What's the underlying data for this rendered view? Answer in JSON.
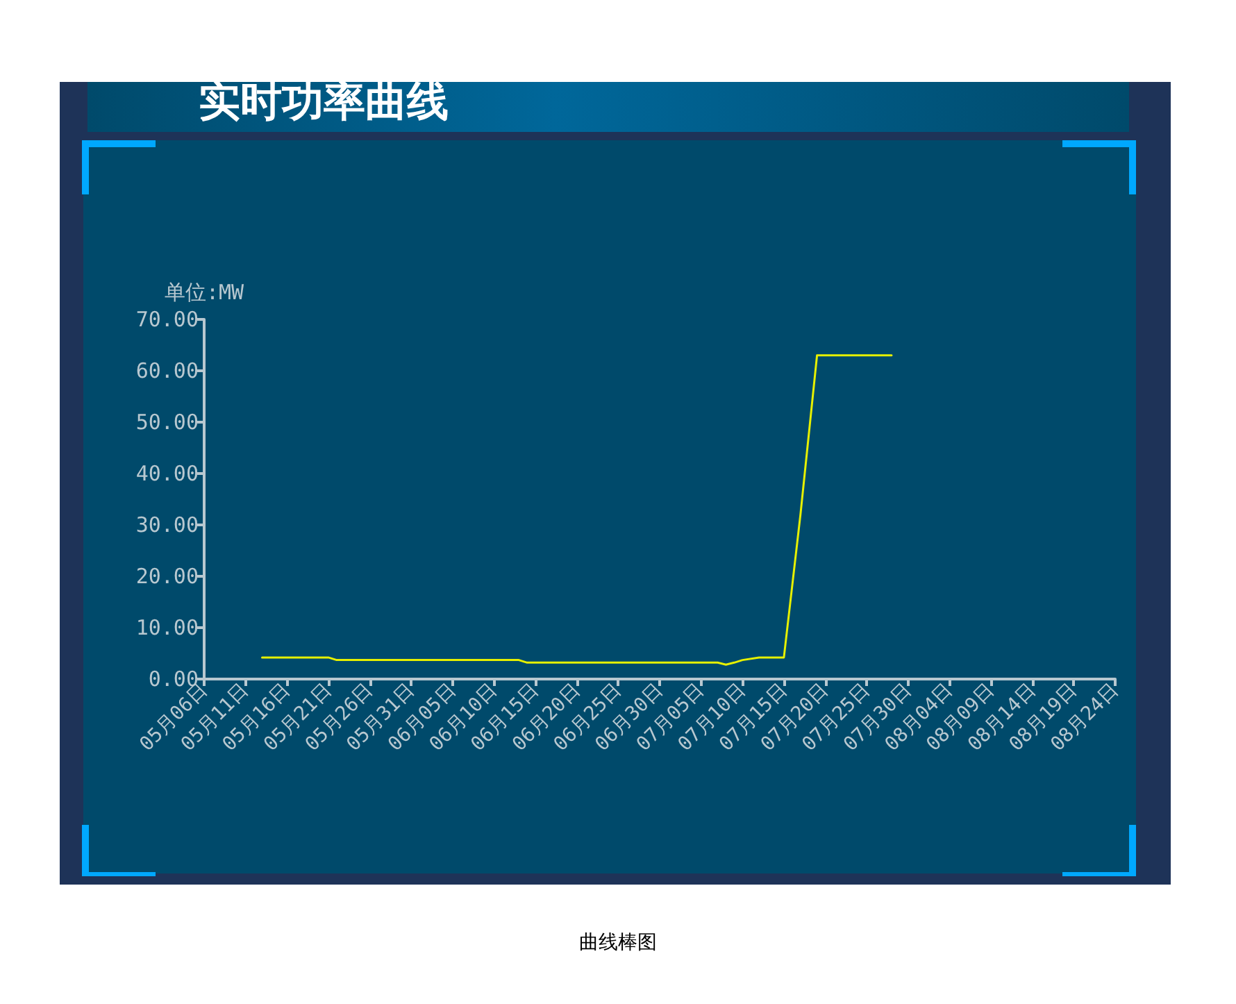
{
  "chart_data": {
    "type": "line",
    "title": "实时功率曲线",
    "ylabel": "单位:MW",
    "annotations": [
      "曲线棒图"
    ],
    "x": [
      "--05-13",
      "--05-21",
      "--05-22",
      "--06-13",
      "--06-14",
      "--07-07",
      "--07-08",
      "--07-09",
      "--07-10",
      "--07-12",
      "--07-15",
      "--07-17",
      "--07-19",
      "--07-28"
    ],
    "series": [
      {
        "color": "#e6f000",
        "values": [
          4.2,
          4.2,
          3.7,
          3.7,
          3.2,
          3.2,
          2.8,
          3.2,
          3.7,
          4.2,
          4.2,
          32,
          63,
          63
        ]
      }
    ],
    "xlim": [
      "--05-06",
      "--08-24"
    ],
    "xticks": [
      {
        "value": "--05-06",
        "label": "05月06日"
      },
      {
        "value": "--05-11",
        "label": "05月11日"
      },
      {
        "value": "--05-16",
        "label": "05月16日"
      },
      {
        "value": "--05-21",
        "label": "05月21日"
      },
      {
        "value": "--05-26",
        "label": "05月26日"
      },
      {
        "value": "--05-31",
        "label": "05月31日"
      },
      {
        "value": "--06-05",
        "label": "06月05日"
      },
      {
        "value": "--06-10",
        "label": "06月10日"
      },
      {
        "value": "--06-15",
        "label": "06月15日"
      },
      {
        "value": "--06-20",
        "label": "06月20日"
      },
      {
        "value": "--06-25",
        "label": "06月25日"
      },
      {
        "value": "--06-30",
        "label": "06月30日"
      },
      {
        "value": "--07-05",
        "label": "07月05日"
      },
      {
        "value": "--07-10",
        "label": "07月10日"
      },
      {
        "value": "--07-15",
        "label": "07月15日"
      },
      {
        "value": "--07-20",
        "label": "07月20日"
      },
      {
        "value": "--07-25",
        "label": "07月25日"
      },
      {
        "value": "--07-30",
        "label": "07月30日"
      },
      {
        "value": "--08-04",
        "label": "08月04日"
      },
      {
        "value": "--08-09",
        "label": "08月09日"
      },
      {
        "value": "--08-14",
        "label": "08月14日"
      },
      {
        "value": "--08-19",
        "label": "08月19日"
      },
      {
        "value": "--08-24",
        "label": "08月24日"
      }
    ],
    "ylim": [
      0,
      70
    ],
    "yticks": [
      {
        "value": 0,
        "label": "0.00"
      },
      {
        "value": 10,
        "label": "10.00"
      },
      {
        "value": 20,
        "label": "20.00"
      },
      {
        "value": 30,
        "label": "30.00"
      },
      {
        "value": 40,
        "label": "40.00"
      },
      {
        "value": 50,
        "label": "50.00"
      },
      {
        "value": 60,
        "label": "60.00"
      },
      {
        "value": 70,
        "label": "70.00"
      }
    ],
    "grid": false,
    "marker": "none",
    "line_style": "solid"
  }
}
